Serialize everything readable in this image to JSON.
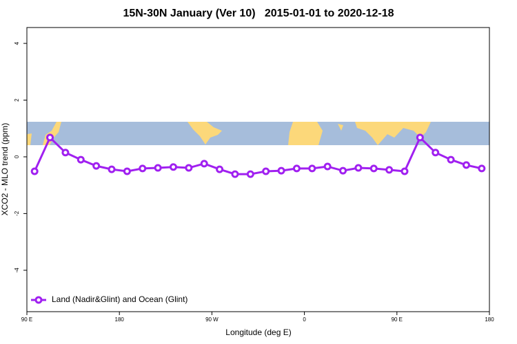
{
  "chart_data": {
    "type": "line",
    "title": "15N-30N January (Ver 10)   2015-01-01 to 2020-12-18",
    "x_label": "Longitude (deg E)",
    "y_label": "XCO2 - MLO trend (ppm)",
    "x": [
      97.5,
      112.5,
      127.5,
      142.5,
      157.5,
      172.5,
      187.5,
      202.5,
      217.5,
      232.5,
      247.5,
      262.5,
      277.5,
      292.5,
      307.5,
      322.5,
      337.5,
      352.5,
      367.5,
      382.5,
      397.5,
      412.5,
      427.5,
      442.5,
      457.5,
      472.5,
      487.5,
      502.5,
      517.5,
      532.5
    ],
    "series": [
      {
        "name": "Land (Nadir&Glint) and Ocean (Glint)",
        "color": "#a020f0",
        "values": [
          -0.51,
          0.68,
          0.15,
          -0.1,
          -0.32,
          -0.44,
          -0.51,
          -0.41,
          -0.39,
          -0.36,
          -0.39,
          -0.24,
          -0.44,
          -0.61,
          -0.61,
          -0.51,
          -0.49,
          -0.41,
          -0.41,
          -0.34,
          -0.49,
          -0.39,
          -0.41,
          -0.46,
          -0.51,
          0.68,
          0.15,
          -0.1,
          -0.29,
          -0.41
        ]
      }
    ],
    "xlim": [
      90,
      540
    ],
    "xticks": [
      {
        "value": 90,
        "label": "90 E"
      },
      {
        "value": 180,
        "label": "180"
      },
      {
        "value": 270,
        "label": "90 W"
      },
      {
        "value": 360,
        "label": "0"
      },
      {
        "value": 450,
        "label": "90 E"
      },
      {
        "value": 540,
        "label": "180"
      }
    ],
    "ylim": [
      -5.46,
      4.56
    ],
    "yticks": [
      -4,
      -2,
      0,
      2,
      4
    ],
    "legend": "bottomleft"
  }
}
